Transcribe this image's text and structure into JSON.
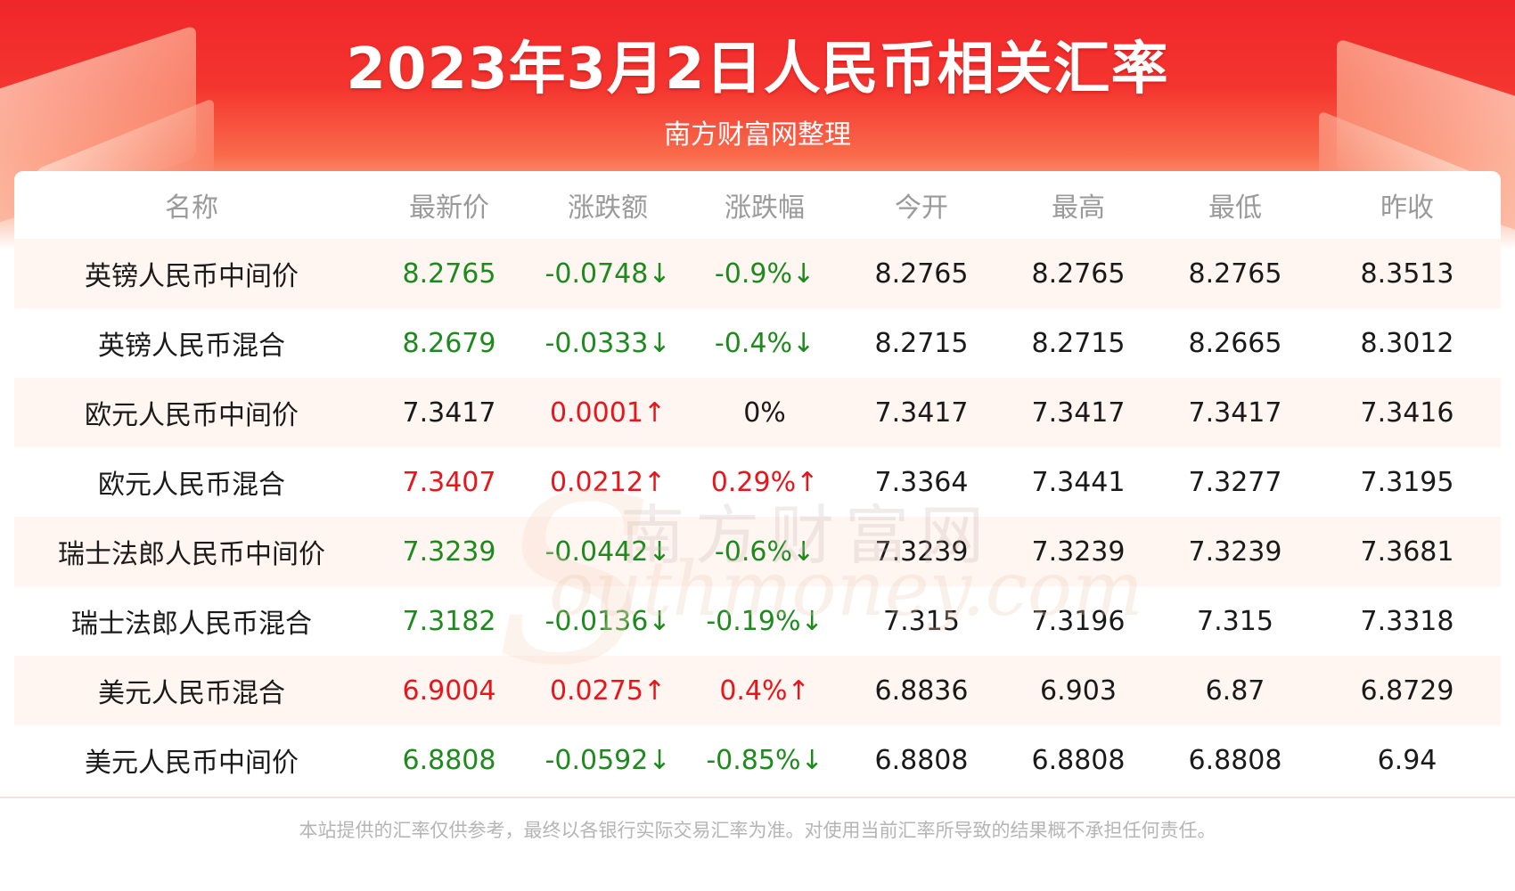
{
  "header": {
    "title": "2023年3月2日人民币相关汇率",
    "subtitle": "南方财富网整理"
  },
  "watermark": {
    "cn": "南方财富网",
    "en": "outhmoney.com",
    "initial": "S"
  },
  "table": {
    "columns": [
      "名称",
      "最新价",
      "涨跌额",
      "涨跌幅",
      "今开",
      "最高",
      "最低",
      "昨收"
    ],
    "rows": [
      {
        "name": "英镑人民币中间价",
        "latest": "8.2765",
        "change": "-0.0748↓",
        "pct": "-0.9%↓",
        "open": "8.2765",
        "high": "8.2765",
        "low": "8.2765",
        "prev": "8.3513",
        "latest_dir": "down",
        "change_dir": "down",
        "pct_dir": "down"
      },
      {
        "name": "英镑人民币混合",
        "latest": "8.2679",
        "change": "-0.0333↓",
        "pct": "-0.4%↓",
        "open": "8.2715",
        "high": "8.2715",
        "low": "8.2665",
        "prev": "8.3012",
        "latest_dir": "down",
        "change_dir": "down",
        "pct_dir": "down"
      },
      {
        "name": "欧元人民币中间价",
        "latest": "7.3417",
        "change": "0.0001↑",
        "pct": "0%",
        "open": "7.3417",
        "high": "7.3417",
        "low": "7.3417",
        "prev": "7.3416",
        "latest_dir": "neutral",
        "change_dir": "up",
        "pct_dir": "neutral"
      },
      {
        "name": "欧元人民币混合",
        "latest": "7.3407",
        "change": "0.0212↑",
        "pct": "0.29%↑",
        "open": "7.3364",
        "high": "7.3441",
        "low": "7.3277",
        "prev": "7.3195",
        "latest_dir": "up",
        "change_dir": "up",
        "pct_dir": "up"
      },
      {
        "name": "瑞士法郎人民币中间价",
        "latest": "7.3239",
        "change": "-0.0442↓",
        "pct": "-0.6%↓",
        "open": "7.3239",
        "high": "7.3239",
        "low": "7.3239",
        "prev": "7.3681",
        "latest_dir": "down",
        "change_dir": "down",
        "pct_dir": "down"
      },
      {
        "name": "瑞士法郎人民币混合",
        "latest": "7.3182",
        "change": "-0.0136↓",
        "pct": "-0.19%↓",
        "open": "7.315",
        "high": "7.3196",
        "low": "7.315",
        "prev": "7.3318",
        "latest_dir": "down",
        "change_dir": "down",
        "pct_dir": "down"
      },
      {
        "name": "美元人民币混合",
        "latest": "6.9004",
        "change": "0.0275↑",
        "pct": "0.4%↑",
        "open": "6.8836",
        "high": "6.903",
        "low": "6.87",
        "prev": "6.8729",
        "latest_dir": "up",
        "change_dir": "up",
        "pct_dir": "up"
      },
      {
        "name": "美元人民币中间价",
        "latest": "6.8808",
        "change": "-0.0592↓",
        "pct": "-0.85%↓",
        "open": "6.8808",
        "high": "6.8808",
        "low": "6.8808",
        "prev": "6.94",
        "latest_dir": "down",
        "change_dir": "down",
        "pct_dir": "down"
      }
    ]
  },
  "footer": {
    "disclaimer": "本站提供的汇率仅供参考，最终以各银行实际交易汇率为准。对使用当前汇率所导致的结果概不承担任何责任。"
  },
  "colors": {
    "header_red": "#f0262a",
    "down_green": "#1e8a1e",
    "up_red": "#e8151b",
    "row_stripe": "#fff5f1",
    "header_text_gray": "#9a9a9a"
  }
}
